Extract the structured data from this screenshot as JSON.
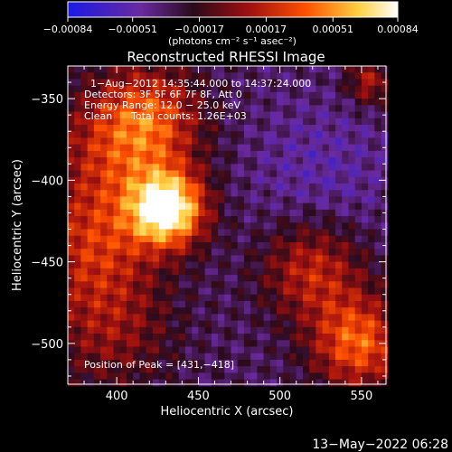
{
  "chart_data": {
    "type": "heatmap",
    "title": "Reconstructed RHESSI Image",
    "xlabel": "Heliocentric X (arcsec)",
    "ylabel": "Heliocentric Y (arcsec)",
    "xlim": [
      370,
      565
    ],
    "ylim": [
      -525,
      -330
    ],
    "x_ticks": [
      400,
      450,
      500,
      550
    ],
    "x_tick_labels": [
      "400",
      "450",
      "500",
      "550"
    ],
    "y_ticks": [
      -350,
      -400,
      -450,
      -500
    ],
    "y_tick_labels": [
      "−350",
      "−400",
      "−450",
      "−500"
    ],
    "colorbar": {
      "ticks": [
        -0.00084,
        -0.00051,
        -0.00017,
        0.00017,
        0.00051,
        0.00084
      ],
      "tick_labels": [
        "−0.00084",
        "−0.00051",
        "−0.00017",
        "0.00017",
        "0.00051",
        "0.00084"
      ],
      "unit_label": "(photons cm⁻² s⁻¹ asec⁻²)"
    },
    "annotations": [
      "1−Aug−2012 14:35:44.000 to 14:37:24.000",
      "Detectors: 3F 5F 6F 7F 8F, Att 0",
      "Energy Range: 12.0 − 25.0 keV",
      "Clean",
      "Total counts: 1.26E+03"
    ],
    "peak_label": "Position of Peak = [431,−418]",
    "peak": [
      431,
      -418
    ],
    "color_scale": [
      "#1a1ae6",
      "#6a2aa0",
      "#2a0a1a",
      "#a01010",
      "#ff5000",
      "#ffd040",
      "#ffffff"
    ]
  },
  "footer": {
    "timestamp": "13−May−2022 06:28"
  }
}
